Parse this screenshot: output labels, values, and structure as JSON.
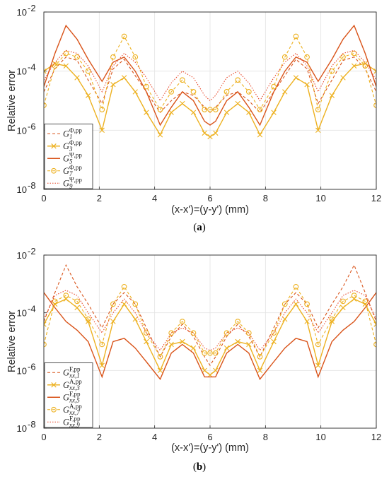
{
  "chart_data": [
    {
      "type": "line",
      "panel": "a",
      "caption": "(a)",
      "xlabel": "(x-x')=(y-y') (mm)",
      "ylabel": "Relative error",
      "xlim": [
        0,
        12
      ],
      "ylim": [
        1e-08,
        0.01
      ],
      "yscale": "log",
      "xticks": [
        0,
        2,
        4,
        6,
        8,
        10,
        12
      ],
      "yticks": [
        {
          "value": 1e-08,
          "exp": "-8"
        },
        {
          "value": 1e-06,
          "exp": "-6"
        },
        {
          "value": 0.0001,
          "exp": "-4"
        },
        {
          "value": 0.01,
          "exp": "-2"
        }
      ],
      "grid": true,
      "legend_position": "bottom-left",
      "x": [
        0,
        0.4,
        0.8,
        1.2,
        1.6,
        2.1,
        2.5,
        2.9,
        3.3,
        3.7,
        4.2,
        4.6,
        5.0,
        5.4,
        5.8,
        6.0,
        6.2,
        6.6,
        7.0,
        7.4,
        7.8,
        8.3,
        8.7,
        9.1,
        9.5,
        9.9,
        10.4,
        10.8,
        11.2,
        11.6,
        12.0
      ],
      "series": [
        {
          "name": "G",
          "sub": "1",
          "sup": "Φ,pp",
          "color": "#d95319",
          "dash": "4,3",
          "marker": "none",
          "values": [
            2e-05,
            0.00012,
            0.0003,
            0.00023,
            5e-05,
            8e-06,
            0.00012,
            0.00025,
            7e-05,
            2e-05,
            4e-06,
            1e-05,
            2e-05,
            1.5e-05,
            6e-06,
            4e-06,
            6e-06,
            1.5e-05,
            2e-05,
            1e-05,
            4e-06,
            2e-05,
            7e-05,
            0.00025,
            0.00012,
            8e-06,
            5e-05,
            0.00023,
            0.0003,
            0.00012,
            2e-05
          ]
        },
        {
          "name": "G",
          "sub": "3",
          "sup": "Φ,pp",
          "color": "#edb120",
          "dash": "none",
          "marker": "x",
          "values": [
            0.0001,
            0.00018,
            0.00015,
            6e-05,
            1.5e-05,
            1e-06,
            3.5e-05,
            6e-05,
            2e-05,
            4e-06,
            7e-07,
            4e-06,
            8e-06,
            4e-06,
            8e-07,
            6e-07,
            8e-07,
            4e-06,
            8e-06,
            4e-06,
            7e-07,
            4e-06,
            2e-05,
            6e-05,
            3.5e-05,
            1e-06,
            1.5e-05,
            6e-05,
            0.00015,
            0.00018,
            0.0001
          ]
        },
        {
          "name": "G",
          "sub": "5",
          "sup": "Ψ,pp",
          "color": "#d95319",
          "dash": "none",
          "marker": "none",
          "values": [
            3e-05,
            0.0004,
            0.0035,
            0.0012,
            0.00025,
            4.5e-05,
            0.0002,
            0.0003,
            0.0001,
            2e-05,
            1.5e-06,
            6e-06,
            2e-05,
            1e-05,
            2e-06,
            1.5e-06,
            2e-06,
            1e-05,
            2e-05,
            6e-06,
            1.5e-06,
            2e-05,
            0.0001,
            0.0003,
            0.0002,
            4.5e-05,
            0.00025,
            0.0012,
            0.0035,
            0.0004,
            3e-05
          ]
        },
        {
          "name": "G",
          "sub": "7",
          "sup": "Φ,pp",
          "color": "#edb120",
          "dash": "4,3",
          "marker": "o",
          "values": [
            7e-06,
            0.00015,
            0.0004,
            0.0003,
            0.0001,
            5e-06,
            0.0003,
            0.0015,
            0.0003,
            3e-05,
            5e-06,
            2e-05,
            5e-05,
            2e-05,
            5e-06,
            5e-06,
            5e-06,
            2e-05,
            5e-05,
            2e-05,
            5e-06,
            3e-05,
            0.0003,
            0.0015,
            0.0003,
            5e-06,
            0.0001,
            0.0003,
            0.0004,
            0.00015,
            7e-06
          ]
        },
        {
          "name": "G",
          "sub": "9",
          "sup": "Ψ,pp",
          "color": "#e8482a",
          "dash": "1.5,2",
          "marker": "none",
          "values": [
            5e-05,
            0.0002,
            0.0005,
            0.0004,
            0.00015,
            2e-05,
            0.00015,
            0.0004,
            0.0002,
            6e-05,
            1e-05,
            4e-05,
            0.0001,
            6e-05,
            1.5e-05,
            1e-05,
            1.5e-05,
            6e-05,
            0.0001,
            4e-05,
            1e-05,
            6e-05,
            0.0002,
            0.0004,
            0.00015,
            2e-05,
            0.00015,
            0.0004,
            0.0005,
            0.0002,
            5e-05
          ]
        }
      ]
    },
    {
      "type": "line",
      "panel": "b",
      "caption": "(b)",
      "xlabel": "(x-x')=(y-y') (mm)",
      "ylabel": "Relative error",
      "xlim": [
        0,
        12
      ],
      "ylim": [
        1e-08,
        0.01
      ],
      "yscale": "log",
      "xticks": [
        0,
        2,
        4,
        6,
        8,
        10,
        12
      ],
      "yticks": [
        {
          "value": 1e-08,
          "exp": "-8"
        },
        {
          "value": 1e-06,
          "exp": "-6"
        },
        {
          "value": 0.0001,
          "exp": "-4"
        },
        {
          "value": 0.01,
          "exp": "-2"
        }
      ],
      "grid": true,
      "legend_position": "bottom-left",
      "x": [
        0,
        0.4,
        0.8,
        1.2,
        1.6,
        2.1,
        2.5,
        2.9,
        3.3,
        3.7,
        4.2,
        4.6,
        5.0,
        5.4,
        5.8,
        6.0,
        6.2,
        6.6,
        7.0,
        7.4,
        7.8,
        8.3,
        8.7,
        9.1,
        9.5,
        9.9,
        10.4,
        10.8,
        11.2,
        11.6,
        12.0
      ],
      "series": [
        {
          "name": "G",
          "sub": "xx,1",
          "sup": "F,pp",
          "color": "#d95319",
          "dash": "4,3",
          "marker": "none",
          "values": [
            5e-05,
            0.0005,
            0.0045,
            0.0008,
            0.0002,
            3e-05,
            0.0002,
            0.0005,
            0.0002,
            3e-05,
            3e-06,
            1.5e-05,
            4e-05,
            1.5e-05,
            3e-06,
            1.5e-06,
            3e-06,
            1.5e-05,
            4e-05,
            1.5e-05,
            3e-06,
            3e-05,
            0.0002,
            0.0005,
            0.0002,
            3e-05,
            0.0002,
            0.0008,
            0.0045,
            0.0005,
            5e-05
          ]
        },
        {
          "name": "G",
          "sub": "xx,3",
          "sup": "A,pp",
          "color": "#edb120",
          "dash": "none",
          "marker": "x",
          "values": [
            4e-05,
            0.0002,
            0.0003,
            0.00015,
            5e-05,
            1.5e-06,
            5e-05,
            0.0002,
            6e-05,
            1e-05,
            1e-06,
            8e-06,
            1e-05,
            6e-06,
            1e-06,
            7e-07,
            1e-06,
            6e-06,
            1e-05,
            8e-06,
            1e-06,
            1e-05,
            6e-05,
            0.0002,
            5e-05,
            1.5e-06,
            5e-05,
            0.00015,
            0.0003,
            0.0002,
            4e-05
          ]
        },
        {
          "name": "G",
          "sub": "xx,5",
          "sup": "F,pp",
          "color": "#d95319",
          "dash": "none",
          "marker": "none",
          "values": [
            0.0005,
            0.00015,
            5e-05,
            2.5e-05,
            1e-05,
            6e-07,
            1e-05,
            1.3e-05,
            6e-06,
            2e-06,
            5e-07,
            4e-06,
            8e-06,
            4e-06,
            6e-07,
            6e-07,
            6e-07,
            4e-06,
            8e-06,
            4e-06,
            5e-07,
            2e-06,
            6e-06,
            1.3e-05,
            1e-05,
            6e-07,
            1e-05,
            2.5e-05,
            5e-05,
            0.00015,
            0.0005
          ]
        },
        {
          "name": "G",
          "sub": "xx,7",
          "sup": "A,pp",
          "color": "#edb120",
          "dash": "4,3",
          "marker": "o",
          "values": [
            8e-06,
            0.00025,
            0.0004,
            0.00025,
            6e-05,
            8e-06,
            0.0002,
            0.0008,
            0.0002,
            2e-05,
            3e-06,
            2e-05,
            5e-05,
            2e-05,
            4e-06,
            4e-06,
            4e-06,
            2e-05,
            5e-05,
            2e-05,
            3e-06,
            2e-05,
            0.0002,
            0.0008,
            0.0002,
            8e-06,
            6e-05,
            0.00025,
            0.0004,
            0.00025,
            8e-06
          ]
        },
        {
          "name": "G",
          "sub": "xx,9",
          "sup": "F,pp",
          "color": "#e8482a",
          "dash": "1.5,2",
          "marker": "none",
          "values": [
            6e-05,
            0.0004,
            0.0006,
            0.0004,
            0.0001,
            2e-05,
            0.0001,
            0.0003,
            0.0001,
            2e-05,
            5e-06,
            2e-05,
            3e-05,
            2e-05,
            6e-06,
            5e-06,
            6e-06,
            2e-05,
            3e-05,
            2e-05,
            5e-06,
            2e-05,
            0.0001,
            0.0003,
            0.0001,
            2e-05,
            0.0001,
            0.0004,
            0.0006,
            0.0004,
            6e-05
          ]
        }
      ]
    }
  ]
}
